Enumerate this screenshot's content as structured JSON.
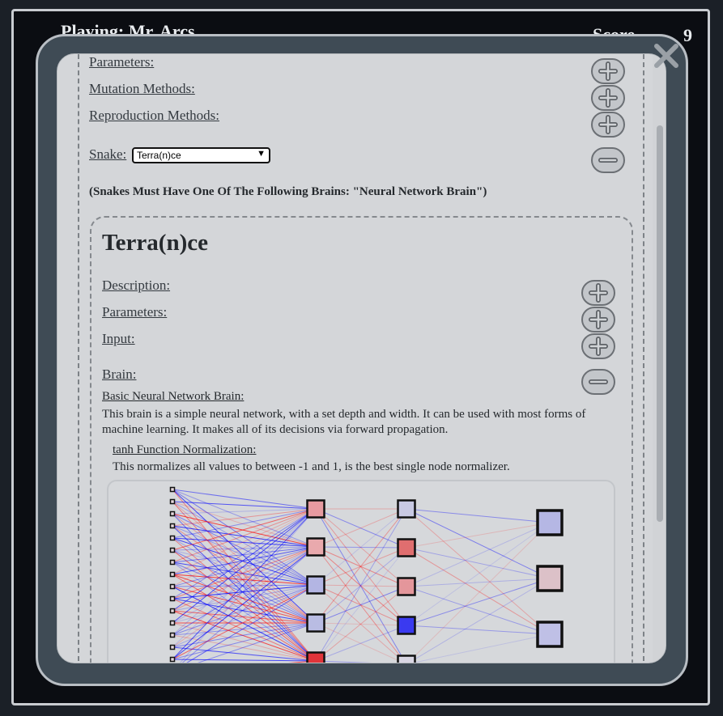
{
  "header": {
    "title": "Playing: Mr. Arcs",
    "score_label": "Score",
    "score_value": "9"
  },
  "sections": {
    "parameters": "Parameters:",
    "mutation": "Mutation Methods:",
    "reproduction": "Reproduction Methods:",
    "snake_label": "Snake:",
    "snake_selected": "Terra(n)ce",
    "brain_note": "(Snakes Must Have One Of The Following Brains: \"Neural Network Brain\")"
  },
  "snake_panel": {
    "title": "Terra(n)ce",
    "description": "Description:",
    "parameters": "Parameters:",
    "input": "Input:",
    "brain": "Brain:",
    "brain_name": "Basic Neural Network Brain:",
    "brain_desc": "This brain is a simple neural network, with a set depth and width. It can be used with most forms of machine learning. It makes all of its decisions via forward propagation.",
    "norm_name": "tanh Function Normalization:",
    "norm_desc": "This normalizes all values to between -1 and 1, is the best single node normalizer."
  },
  "icons": {
    "close": "close-x-icon",
    "expand": "plus-icon",
    "collapse": "minus-icon"
  },
  "colors": {
    "positive": "#ff0000",
    "negative": "#0000ff",
    "panel_bg": "#d4d6d9",
    "modal_bg": "#3f4b55"
  },
  "network": {
    "input_count": 16,
    "hidden1": [
      "#e79aa0",
      "#e9a9ad",
      "#b3b5e3",
      "#b9bce3",
      "#e0343a"
    ],
    "hidden2": [
      "#c8c9e3",
      "#e06e6f",
      "#e4969b",
      "#3a3af0",
      "#d9d6e3"
    ],
    "output": [
      "#b5b7e4",
      "#dcc1c8",
      "#bfc0e6"
    ]
  }
}
